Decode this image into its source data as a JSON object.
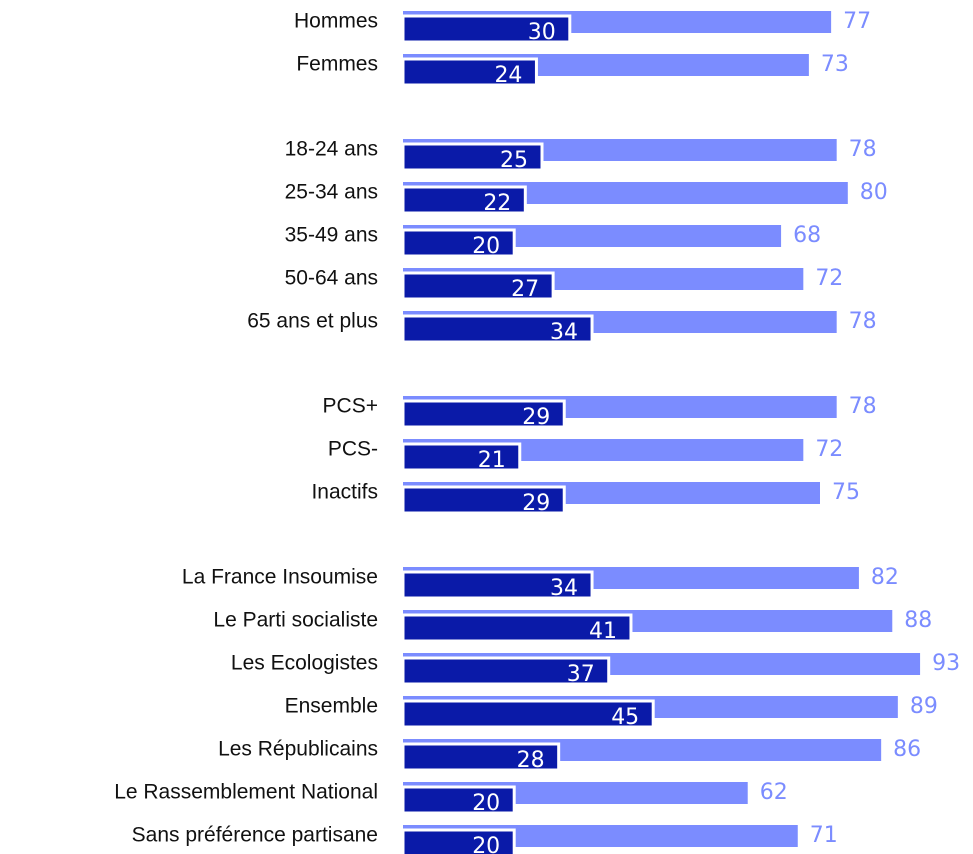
{
  "chart_data": {
    "type": "hbar-overlap",
    "categories": [
      "Hommes",
      "Femmes",
      "18-24 ans",
      "25-34 ans",
      "35-49 ans",
      "50-64 ans",
      "65 ans et plus",
      "PCS+",
      "PCS-",
      "Inactifs",
      "La France Insoumise",
      "Le Parti socialiste",
      "Les Ecologistes",
      "Ensemble",
      "Les Républicains",
      "Le Rassemblement National",
      "Sans préférence partisane"
    ],
    "series": [
      {
        "color": "#7b8cff",
        "values": [
          77,
          73,
          78,
          80,
          68,
          72,
          78,
          78,
          72,
          75,
          82,
          88,
          93,
          89,
          86,
          62,
          71
        ]
      },
      {
        "color": "#0a1aa8",
        "values": [
          30,
          24,
          25,
          22,
          20,
          27,
          34,
          29,
          21,
          29,
          34,
          41,
          37,
          45,
          28,
          20,
          20
        ]
      }
    ],
    "xlim": [
      0,
      100
    ]
  }
}
